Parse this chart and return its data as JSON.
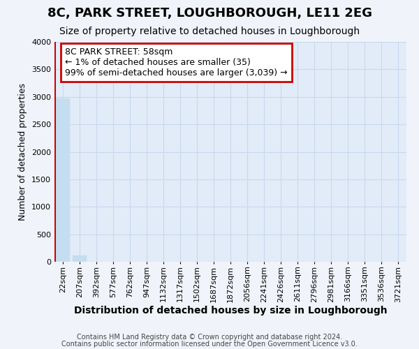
{
  "title": "8C, PARK STREET, LOUGHBOROUGH, LE11 2EG",
  "subtitle": "Size of property relative to detached houses in Loughborough",
  "xlabel": "Distribution of detached houses by size in Loughborough",
  "ylabel": "Number of detached properties",
  "footnote1": "Contains HM Land Registry data © Crown copyright and database right 2024.",
  "footnote2": "Contains public sector information licensed under the Open Government Licence v3.0.",
  "annotation_line1": "8C PARK STREET: 58sqm",
  "annotation_line2": "← 1% of detached houses are smaller (35)",
  "annotation_line3": "99% of semi-detached houses are larger (3,039) →",
  "bar_labels": [
    "22sqm",
    "207sqm",
    "392sqm",
    "577sqm",
    "762sqm",
    "947sqm",
    "1132sqm",
    "1317sqm",
    "1502sqm",
    "1687sqm",
    "1872sqm",
    "2056sqm",
    "2241sqm",
    "2426sqm",
    "2611sqm",
    "2796sqm",
    "2981sqm",
    "3166sqm",
    "3351sqm",
    "3536sqm",
    "3721sqm"
  ],
  "bar_values": [
    2970,
    120,
    5,
    3,
    2,
    1,
    1,
    1,
    0,
    0,
    0,
    0,
    0,
    0,
    0,
    0,
    0,
    0,
    0,
    0,
    0
  ],
  "bar_color": "#c5ddf0",
  "marker_color": "#cc0000",
  "annotation_box_color": "#cc0000",
  "ylim": [
    0,
    4000
  ],
  "yticks": [
    0,
    500,
    1000,
    1500,
    2000,
    2500,
    3000,
    3500,
    4000
  ],
  "background_color": "#f0f4fa",
  "plot_bg_color": "#e2ecf8",
  "grid_color": "#c8d8ee",
  "title_fontsize": 13,
  "subtitle_fontsize": 10,
  "xlabel_fontsize": 10,
  "ylabel_fontsize": 9,
  "tick_fontsize": 8,
  "annotation_fontsize": 9,
  "footnote_fontsize": 7
}
